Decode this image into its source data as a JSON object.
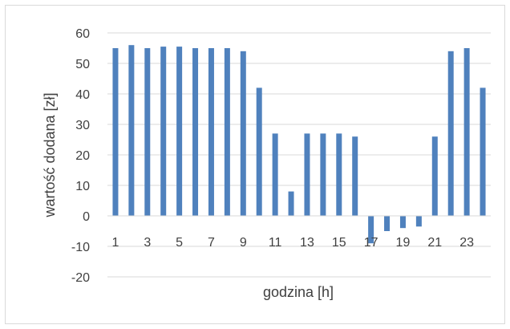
{
  "chart_data": {
    "type": "bar",
    "xlabel": "godzina [h]",
    "ylabel": "wartość dodana [zł]",
    "ylim": [
      -20,
      60
    ],
    "yticks": [
      -20,
      -10,
      0,
      10,
      20,
      30,
      40,
      50,
      60
    ],
    "grid": "horizontal",
    "legend": "none",
    "bar_color": "#4f81bd",
    "categories": [
      1,
      2,
      3,
      4,
      5,
      6,
      7,
      8,
      9,
      10,
      11,
      12,
      13,
      14,
      15,
      16,
      17,
      18,
      19,
      20,
      21,
      22,
      23,
      24
    ],
    "x_tick_labels": [
      "1",
      "3",
      "5",
      "7",
      "9",
      "11",
      "13",
      "15",
      "17",
      "19",
      "21",
      "23"
    ],
    "values": [
      55,
      56,
      55,
      55.5,
      55.5,
      55,
      55,
      55,
      54,
      42,
      27,
      8,
      27,
      27,
      27,
      26,
      -9,
      -5,
      -4,
      -3.5,
      26,
      54,
      55,
      42
    ]
  }
}
